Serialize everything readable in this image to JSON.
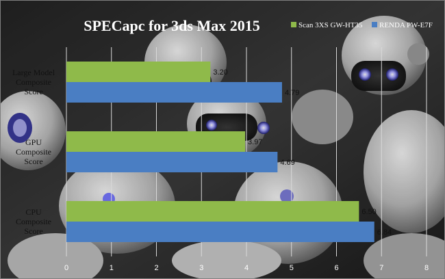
{
  "colors": {
    "series_1": "#8fba4a",
    "series_2": "#4a7ec3",
    "gridline": "#d9d9d9",
    "title": "#ffffff"
  },
  "chart_data": {
    "type": "bar",
    "orientation": "horizontal",
    "title": "SPECapc for 3ds Max 2015",
    "xlabel": "",
    "ylabel": "",
    "categories": [
      [
        "Large Model",
        "Composite",
        "Score"
      ],
      [
        "GPU",
        "Composite",
        "Score"
      ],
      [
        "CPU",
        "Composite",
        "Score"
      ]
    ],
    "series": [
      {
        "name": "Scan 3XS GW-HT35",
        "values": [
          3.2,
          3.97,
          6.5
        ]
      },
      {
        "name": "RENDA PW-E7F",
        "values": [
          4.79,
          4.69,
          6.84
        ]
      }
    ],
    "value_labels": [
      [
        "3.20",
        "3.97",
        "6.50"
      ],
      [
        "4.79",
        "4.69",
        "6.84"
      ]
    ],
    "xlim": [
      0,
      8
    ],
    "xticks": [
      "0",
      "1",
      "2",
      "3",
      "4",
      "5",
      "6",
      "7",
      "8"
    ],
    "grid": true,
    "legend": "top-right",
    "background": "photograph of humanoid robots"
  }
}
